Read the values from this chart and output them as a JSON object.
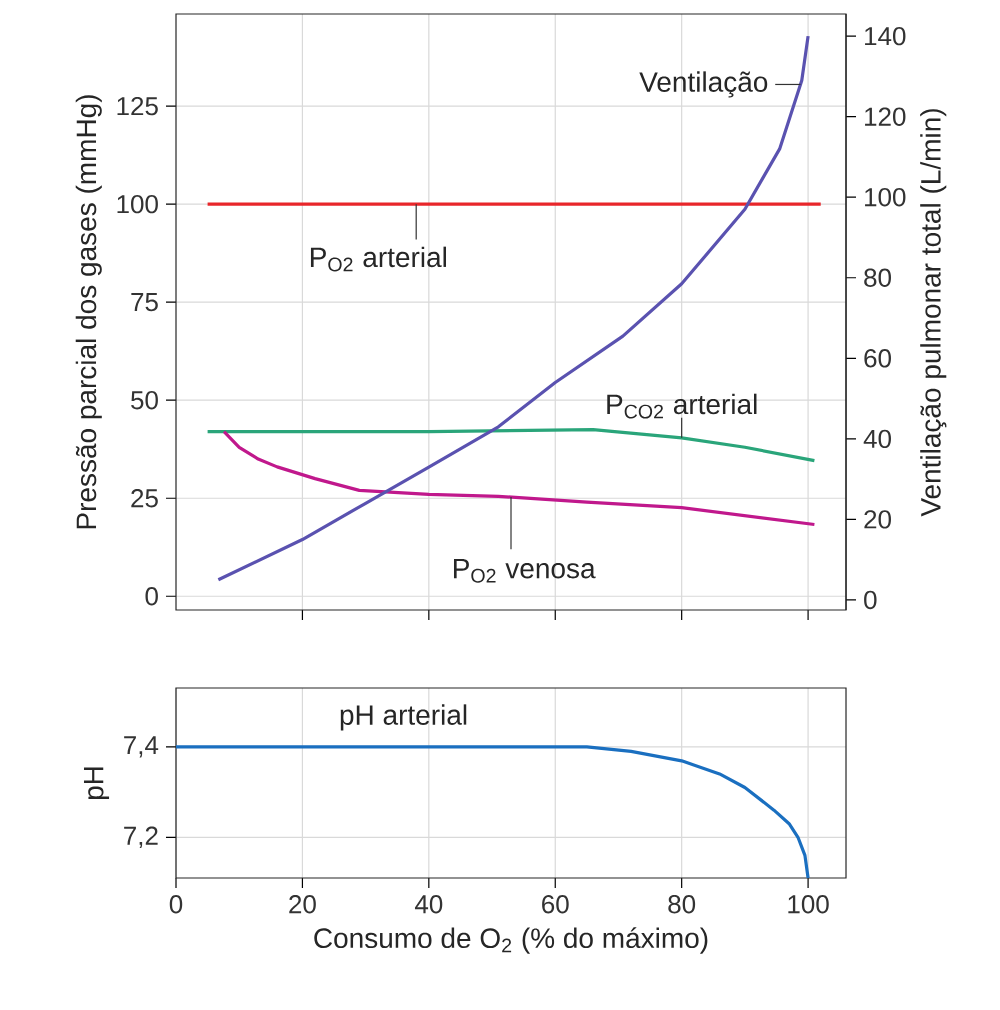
{
  "chart_data": [
    {
      "type": "line",
      "ylabel": "Pressão parcial dos gases (mmHg)",
      "y2label": "Ventilação pulmonar total (L/min)",
      "xlim": [
        0,
        106
      ],
      "xticks": [
        20,
        40,
        60,
        80,
        100
      ],
      "ylim": [
        -3.5,
        148.5
      ],
      "yticks": [
        0,
        25,
        50,
        75,
        100,
        125
      ],
      "y2lim": [
        -2.5,
        145.5
      ],
      "y2ticks": [
        0,
        20,
        40,
        60,
        80,
        100,
        120,
        140
      ],
      "grid": true,
      "tick_labels": "y",
      "series": [
        {
          "name": "P$_{O2}$ arterial",
          "color": "#e8262a",
          "x": [
            5,
            102
          ],
          "values": [
            100,
            100
          ]
        },
        {
          "name": "P$_{CO2}$ arterial",
          "color": "#2aa57a",
          "x": [
            5,
            20,
            40,
            66,
            80,
            90,
            101
          ],
          "values": [
            42,
            42,
            42,
            42.5,
            40.4,
            38,
            34.6
          ]
        },
        {
          "name": "P$_{O2}$ venosa",
          "color": "#c0188c",
          "x": [
            7.6,
            10,
            13,
            16,
            22,
            29,
            40,
            51,
            65,
            80,
            101
          ],
          "values": [
            42,
            38,
            35,
            33,
            30,
            27,
            26,
            25.5,
            24,
            22.6,
            18.3
          ]
        },
        {
          "name": "Ventilação",
          "color": "#5a52b0",
          "axis": "y2",
          "x": [
            6.7,
            20,
            30,
            40,
            51,
            60,
            70.7,
            80,
            90,
            95.5,
            99,
            100
          ],
          "values": [
            5,
            15,
            24,
            33,
            43,
            54,
            65.5,
            78.5,
            97,
            112,
            129,
            140
          ]
        }
      ]
    },
    {
      "type": "line",
      "xlabel": "Consumo de O$_{2}$ (% do máximo)",
      "ylabel": "pH",
      "xlim": [
        0,
        106
      ],
      "xticks": [
        0,
        20,
        40,
        60,
        80,
        100
      ],
      "ylim": [
        7.11,
        7.53
      ],
      "yticks": [
        {
          "value": 7.2,
          "label": "7,2"
        },
        {
          "value": 7.4,
          "label": "7,4"
        }
      ],
      "grid": true,
      "series": [
        {
          "name": "pH arterial",
          "color": "#1a6fc0",
          "x": [
            0,
            65,
            72,
            80,
            86,
            90,
            94.6,
            97,
            98.4,
            99.5,
            100
          ],
          "values": [
            7.4,
            7.4,
            7.39,
            7.369,
            7.34,
            7.31,
            7.26,
            7.23,
            7.2,
            7.16,
            7.11
          ]
        }
      ]
    }
  ]
}
